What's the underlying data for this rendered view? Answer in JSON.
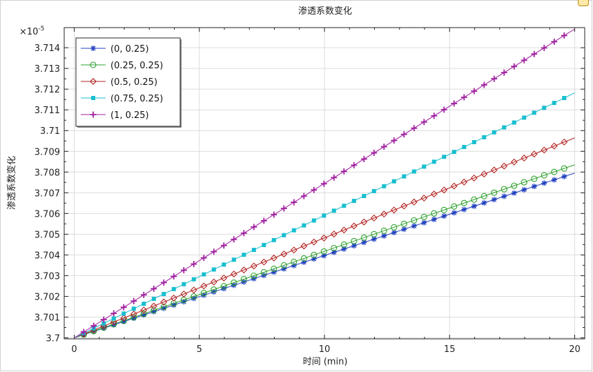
{
  "chart_data": {
    "type": "line",
    "title": "渗透系数变化",
    "xlabel": "时间 (min)",
    "ylabel": "渗透系数变化",
    "y_multiplier": "×10",
    "y_exponent": "-5",
    "xlim": [
      -0.4,
      20.4
    ],
    "ylim": [
      3.69995,
      3.71497
    ],
    "xticks": [
      0,
      5,
      10,
      15,
      20
    ],
    "yticks": [
      3.7,
      3.701,
      3.702,
      3.703,
      3.704,
      3.705,
      3.706,
      3.707,
      3.708,
      3.709,
      3.71,
      3.711,
      3.712,
      3.713,
      3.714
    ],
    "ytick_labels": [
      "3.7",
      "3.701",
      "3.702",
      "3.703",
      "3.704",
      "3.705",
      "3.706",
      "3.707",
      "3.708",
      "3.709",
      "3.71",
      "3.711",
      "3.712",
      "3.713",
      "3.714"
    ],
    "grid": true,
    "legend_position": "top-left",
    "x": [
      0,
      20
    ],
    "marker_x_start": 0.38,
    "marker_x_step": 0.4,
    "marker_x_end": 19.8,
    "series": [
      {
        "name": "(0, 0.25)",
        "color": "#1f3fbf",
        "marker": "star",
        "values": [
          3.7,
          3.70795
        ]
      },
      {
        "name": "(0.25, 0.25)",
        "color": "#2ca02c",
        "marker": "circle",
        "values": [
          3.7,
          3.70835
        ]
      },
      {
        "name": "(0.5, 0.25)",
        "color": "#b22222",
        "marker": "diamond",
        "values": [
          3.7,
          3.70965
        ]
      },
      {
        "name": "(0.75, 0.25)",
        "color": "#17becf",
        "marker": "square",
        "values": [
          3.7,
          3.71182
        ]
      },
      {
        "name": "(1, 0.25)",
        "color": "#a020a0",
        "marker": "plus",
        "values": [
          3.7,
          3.7149
        ]
      }
    ]
  }
}
